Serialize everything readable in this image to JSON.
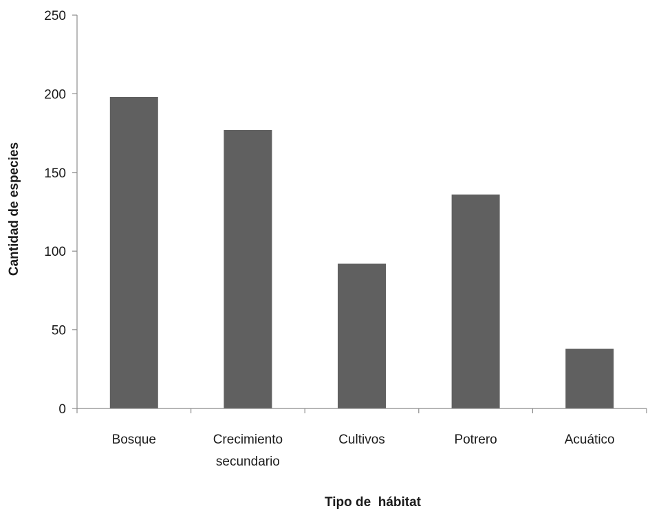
{
  "chart_data": {
    "type": "bar",
    "categories": [
      [
        "Bosque"
      ],
      [
        "Crecimiento",
        "secundario"
      ],
      [
        "Cultivos"
      ],
      [
        "Potrero"
      ],
      [
        "Acuático"
      ]
    ],
    "values": [
      198,
      177,
      92,
      136,
      38
    ],
    "xlabel": "Tipo de  hábitat",
    "ylabel": "Cantidad de especies",
    "ylim": [
      0,
      250
    ],
    "yticks": [
      0,
      50,
      100,
      150,
      200,
      250
    ],
    "grid": false,
    "legend": "none",
    "bar_color": "#606060",
    "axis_color": "#8c8c8c"
  }
}
